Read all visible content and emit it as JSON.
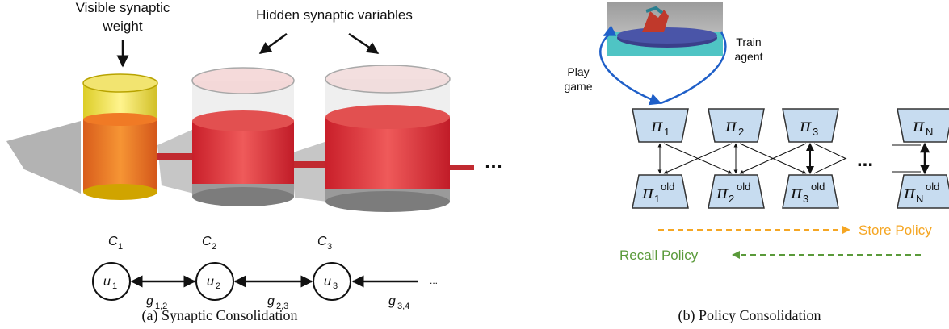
{
  "panel_a": {
    "label_visible": [
      "Visible synaptic",
      "weight"
    ],
    "label_hidden": "Hidden synaptic variables",
    "ellipsis_big": "...",
    "ellipsis_small": "...",
    "nodes": [
      {
        "c": "C",
        "c_sub": "1",
        "u": "u",
        "u_sub": "1"
      },
      {
        "c": "C",
        "c_sub": "2",
        "u": "u",
        "u_sub": "2"
      },
      {
        "c": "C",
        "c_sub": "3",
        "u": "u",
        "u_sub": "3"
      }
    ],
    "couplings": [
      {
        "g": "g",
        "sub": "1,2"
      },
      {
        "g": "g",
        "sub": "2,3"
      },
      {
        "g": "g",
        "sub": "3,4"
      }
    ],
    "caption": "(a) Synaptic Consolidation"
  },
  "panel_b": {
    "play_game": [
      "Play",
      "game"
    ],
    "train_agent": [
      "Train",
      "agent"
    ],
    "policies": [
      {
        "pi": "π",
        "sub": "1",
        "old_sub": "1",
        "sup": "old"
      },
      {
        "pi": "π",
        "sub": "2",
        "old_sub": "2",
        "sup": "old"
      },
      {
        "pi": "π",
        "sub": "3",
        "old_sub": "3",
        "sup": "old"
      },
      {
        "pi": "π",
        "sub": "N",
        "old_sub": "N",
        "sup": "old"
      }
    ],
    "ellipsis": "...",
    "store_policy": "Store Policy",
    "recall_policy": "Recall Policy",
    "caption": "(b) Policy Consolidation",
    "colors": {
      "box_fill": "#c7dcf0",
      "store": "#f5a623",
      "recall": "#5a9a3a",
      "arrow_blue": "#1f5fc8"
    }
  }
}
